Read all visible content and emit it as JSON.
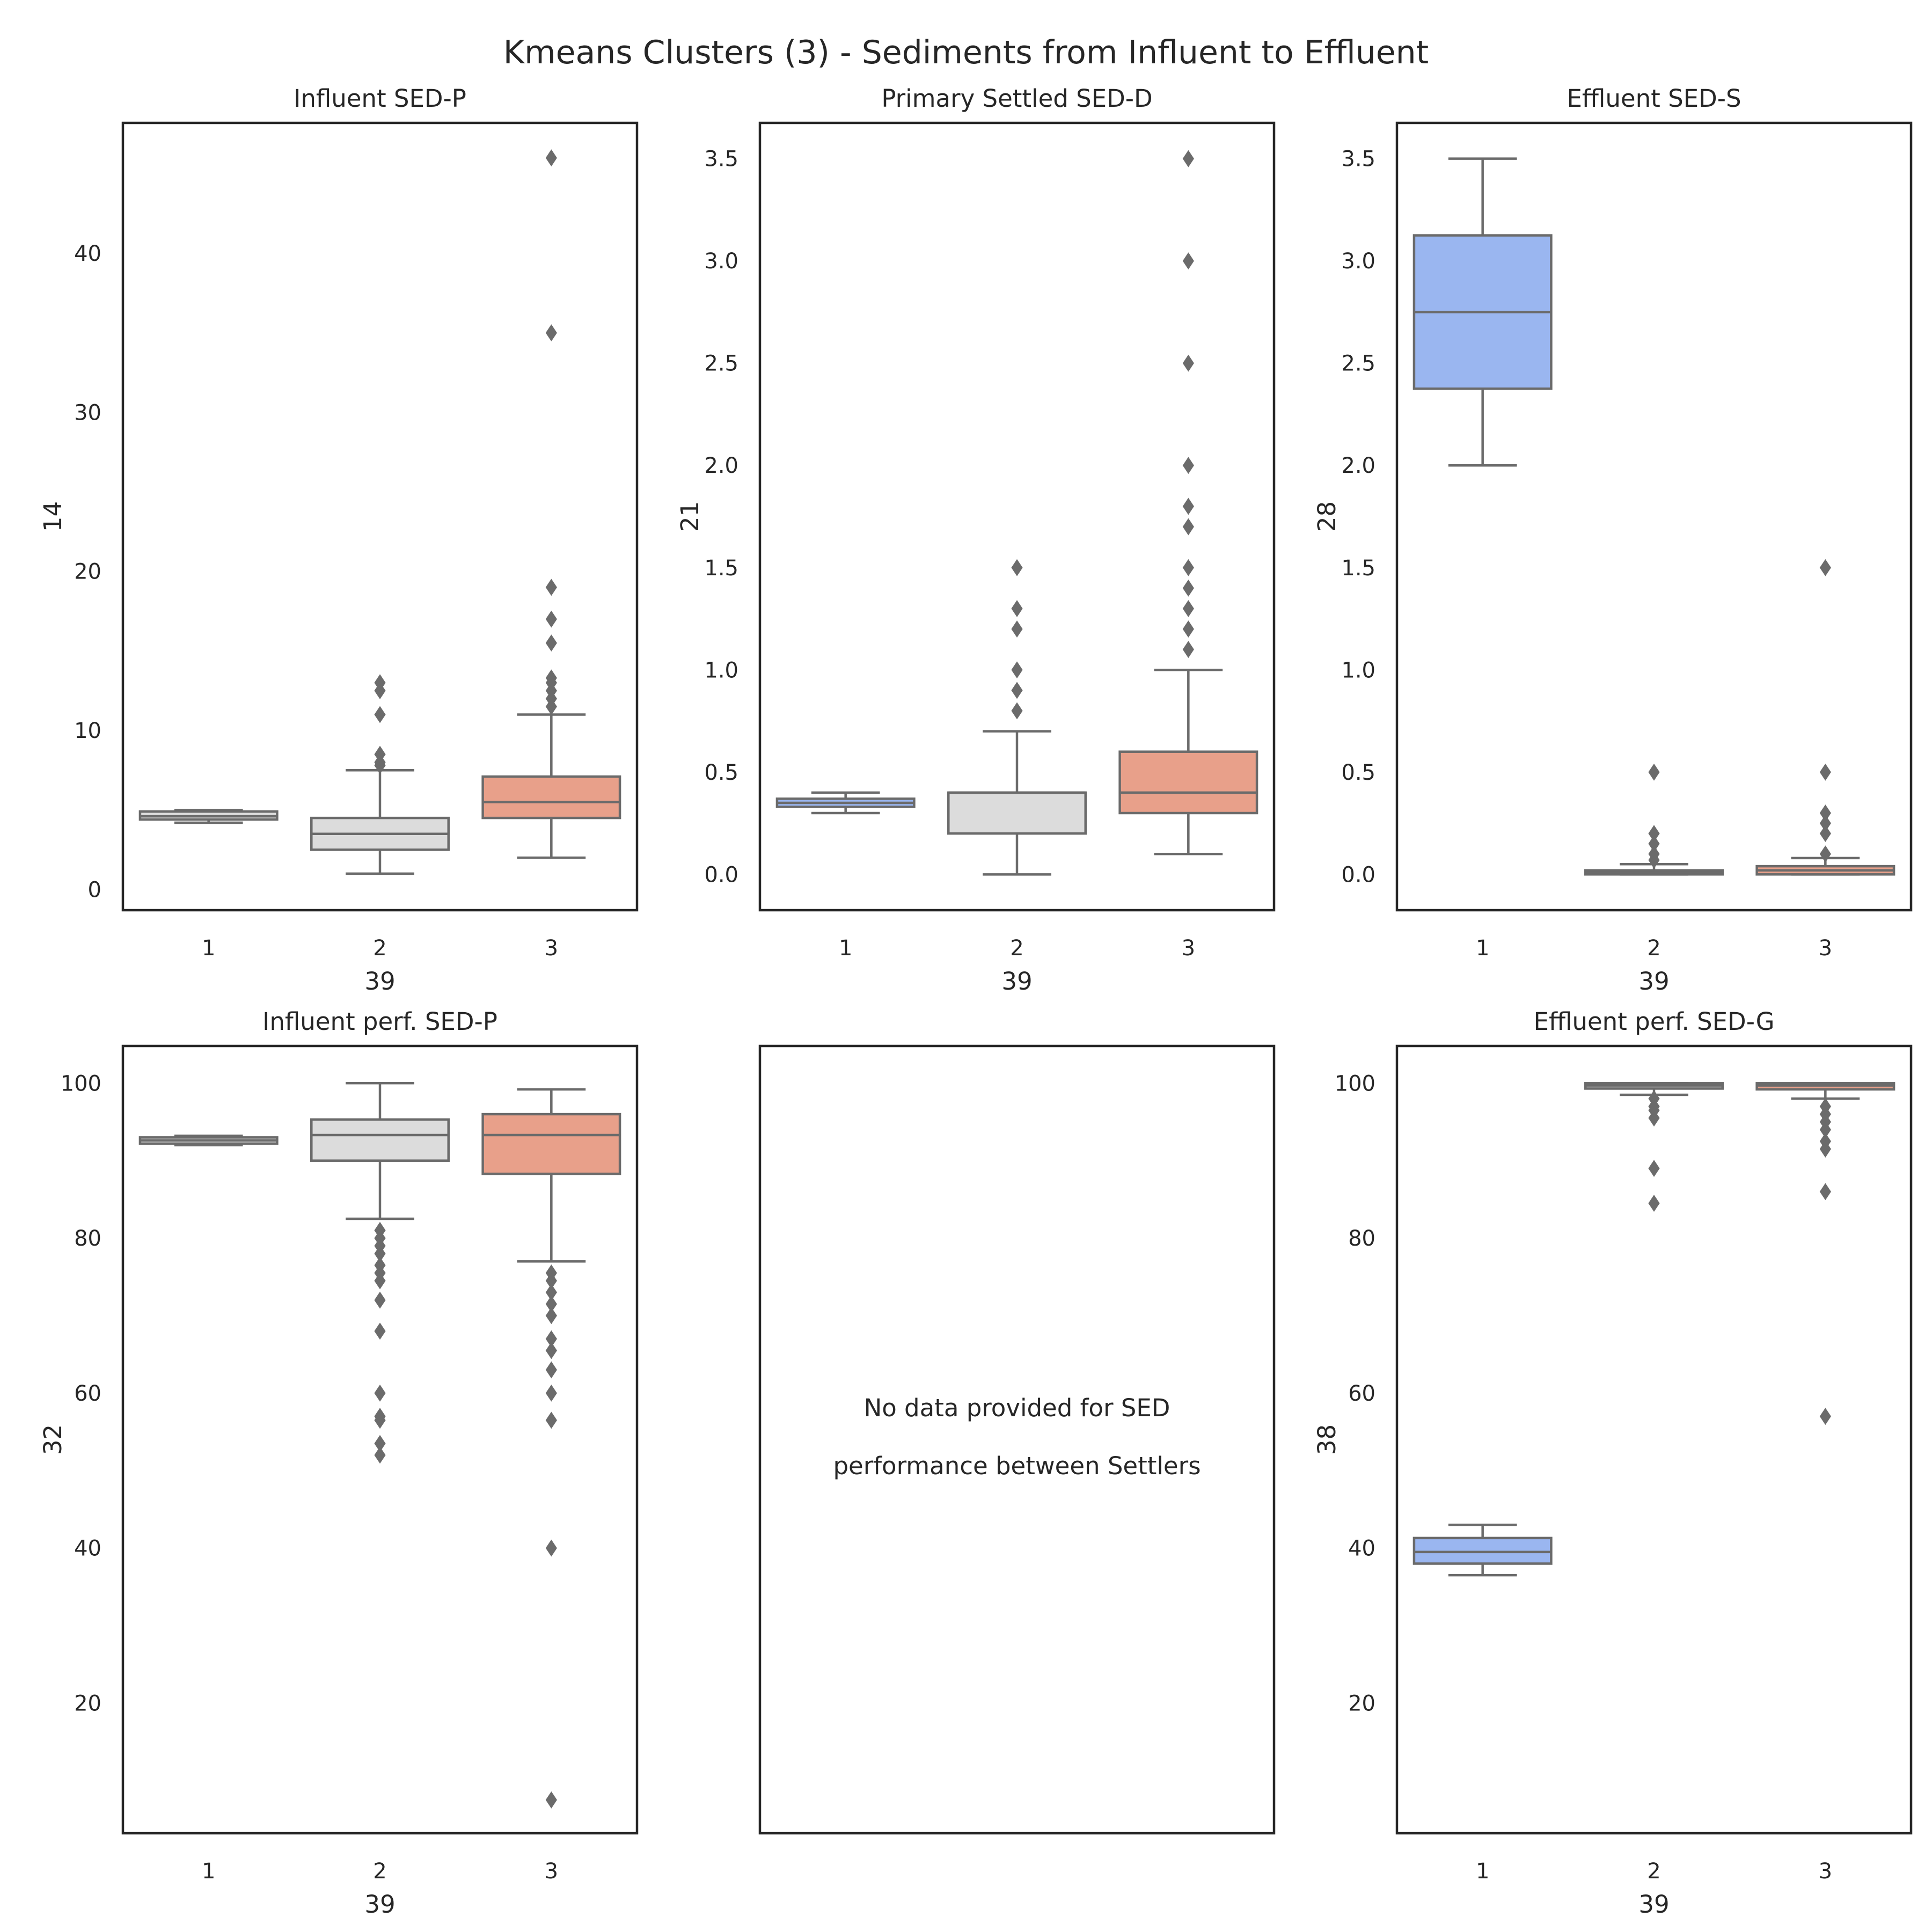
{
  "title": "Kmeans Clusters (3) - Sediments from Influent to Effluent",
  "colors": {
    "cluster_1": "#9ab6f0",
    "cluster_2": "#dcdcdc",
    "cluster_3": "#e8a08a",
    "line": "#6b6b6b",
    "frame": "#262626"
  },
  "chart_data": [
    {
      "type": "box",
      "title": "Influent SED-P",
      "xlabel": "39",
      "ylabel": "14",
      "categories": [
        "1",
        "2",
        "3"
      ],
      "ylim": [
        -1.3,
        48.2
      ],
      "yticks": [
        0,
        10,
        20,
        30,
        40
      ],
      "ytick_labels": [
        "0",
        "10",
        "20",
        "30",
        "40"
      ],
      "series": [
        {
          "category": "1",
          "color": "cluster_2",
          "q1": 4.4,
          "median": 4.6,
          "q3": 4.9,
          "whisker_low": 4.2,
          "whisker_high": 5.0,
          "outliers": []
        },
        {
          "category": "2",
          "color": "cluster_2",
          "q1": 2.5,
          "median": 3.5,
          "q3": 4.5,
          "whisker_low": 1.0,
          "whisker_high": 7.5,
          "outliers": [
            7.8,
            8.0,
            8.5,
            11.0,
            12.5,
            13.0
          ]
        },
        {
          "category": "3",
          "color": "cluster_3",
          "q1": 4.5,
          "median": 5.5,
          "q3": 7.1,
          "whisker_low": 2.0,
          "whisker_high": 11.0,
          "outliers": [
            11.5,
            12.0,
            12.5,
            13.0,
            13.3,
            15.5,
            17.0,
            19.0,
            35.0,
            46.0
          ]
        }
      ]
    },
    {
      "type": "box",
      "title": "Primary Settled SED-D",
      "xlabel": "39",
      "ylabel": "21",
      "categories": [
        "1",
        "2",
        "3"
      ],
      "ylim": [
        -0.175,
        3.675
      ],
      "yticks": [
        0,
        0.5,
        1.0,
        1.5,
        2.0,
        2.5,
        3.0,
        3.5
      ],
      "ytick_labels": [
        "0.0",
        "0.5",
        "1.0",
        "1.5",
        "2.0",
        "2.5",
        "3.0",
        "3.5"
      ],
      "series": [
        {
          "category": "1",
          "color": "cluster_1",
          "q1": 0.33,
          "median": 0.35,
          "q3": 0.37,
          "whisker_low": 0.3,
          "whisker_high": 0.4,
          "outliers": []
        },
        {
          "category": "2",
          "color": "cluster_2",
          "q1": 0.2,
          "median": 0.4,
          "q3": 0.4,
          "whisker_low": 0.0,
          "whisker_high": 0.7,
          "outliers": [
            0.8,
            0.9,
            1.0,
            1.2,
            1.3,
            1.5
          ]
        },
        {
          "category": "3",
          "color": "cluster_3",
          "q1": 0.3,
          "median": 0.4,
          "q3": 0.6,
          "whisker_low": 0.1,
          "whisker_high": 1.0,
          "outliers": [
            1.1,
            1.2,
            1.3,
            1.4,
            1.5,
            1.7,
            1.8,
            2.0,
            2.5,
            3.0,
            3.5
          ]
        }
      ]
    },
    {
      "type": "box",
      "title": "Effluent SED-S",
      "xlabel": "39",
      "ylabel": "28",
      "categories": [
        "1",
        "2",
        "3"
      ],
      "ylim": [
        -0.175,
        3.675
      ],
      "yticks": [
        0,
        0.5,
        1.0,
        1.5,
        2.0,
        2.5,
        3.0,
        3.5
      ],
      "ytick_labels": [
        "0.0",
        "0.5",
        "1.0",
        "1.5",
        "2.0",
        "2.5",
        "3.0",
        "3.5"
      ],
      "series": [
        {
          "category": "1",
          "color": "cluster_1",
          "q1": 2.375,
          "median": 2.75,
          "q3": 3.125,
          "whisker_low": 2.0,
          "whisker_high": 3.5,
          "outliers": []
        },
        {
          "category": "2",
          "color": "cluster_2",
          "q1": 0.0,
          "median": 0.01,
          "q3": 0.02,
          "whisker_low": 0.0,
          "whisker_high": 0.05,
          "outliers": [
            0.07,
            0.1,
            0.15,
            0.2,
            0.5
          ]
        },
        {
          "category": "3",
          "color": "cluster_3",
          "q1": 0.0,
          "median": 0.02,
          "q3": 0.04,
          "whisker_low": 0.0,
          "whisker_high": 0.08,
          "outliers": [
            0.1,
            0.2,
            0.25,
            0.3,
            0.5,
            1.5
          ]
        }
      ]
    },
    {
      "type": "box",
      "title": "Influent perf. SED-P",
      "xlabel": "39",
      "ylabel": "32",
      "categories": [
        "1",
        "2",
        "3"
      ],
      "ylim": [
        3.2,
        104.8
      ],
      "yticks": [
        20,
        40,
        60,
        80,
        100
      ],
      "ytick_labels": [
        "20",
        "40",
        "60",
        "80",
        "100"
      ],
      "series": [
        {
          "category": "1",
          "color": "cluster_2",
          "q1": 92.2,
          "median": 92.6,
          "q3": 93.0,
          "whisker_low": 92.0,
          "whisker_high": 93.2,
          "outliers": []
        },
        {
          "category": "2",
          "color": "cluster_2",
          "q1": 90.0,
          "median": 93.3,
          "q3": 95.3,
          "whisker_low": 82.5,
          "whisker_high": 100.0,
          "outliers": [
            81.0,
            80.0,
            79.0,
            78.0,
            76.5,
            75.5,
            74.5,
            72.0,
            68.0,
            60.0,
            57.0,
            56.5,
            53.5,
            52.0
          ]
        },
        {
          "category": "3",
          "color": "cluster_3",
          "q1": 88.3,
          "median": 93.3,
          "q3": 96.0,
          "whisker_low": 77.0,
          "whisker_high": 99.2,
          "outliers": [
            75.5,
            74.5,
            73.0,
            71.5,
            70.0,
            67.0,
            65.5,
            63.0,
            60.0,
            56.5,
            40.0,
            7.5
          ]
        }
      ]
    },
    {
      "type": "text",
      "note_lines": [
        "No data provided for SED",
        "performance between Settlers"
      ]
    },
    {
      "type": "box",
      "title": "Effluent perf. SED-G",
      "xlabel": "39",
      "ylabel": "38",
      "categories": [
        "1",
        "2",
        "3"
      ],
      "ylim": [
        3.2,
        104.8
      ],
      "yticks": [
        20,
        40,
        60,
        80,
        100
      ],
      "ytick_labels": [
        "20",
        "40",
        "60",
        "80",
        "100"
      ],
      "series": [
        {
          "category": "1",
          "color": "cluster_1",
          "q1": 38.0,
          "median": 39.5,
          "q3": 41.3,
          "whisker_low": 36.5,
          "whisker_high": 43.0,
          "outliers": []
        },
        {
          "category": "2",
          "color": "cluster_2",
          "q1": 99.3,
          "median": 99.7,
          "q3": 100.0,
          "whisker_low": 98.5,
          "whisker_high": 100.0,
          "outliers": [
            98.0,
            97.0,
            96.5,
            95.5,
            89.0,
            84.5
          ]
        },
        {
          "category": "3",
          "color": "cluster_3",
          "q1": 99.2,
          "median": 99.7,
          "q3": 100.0,
          "whisker_low": 98.0,
          "whisker_high": 100.0,
          "outliers": [
            97.0,
            96.0,
            95.0,
            94.0,
            92.5,
            91.5,
            86.0,
            57.0
          ]
        }
      ]
    }
  ]
}
